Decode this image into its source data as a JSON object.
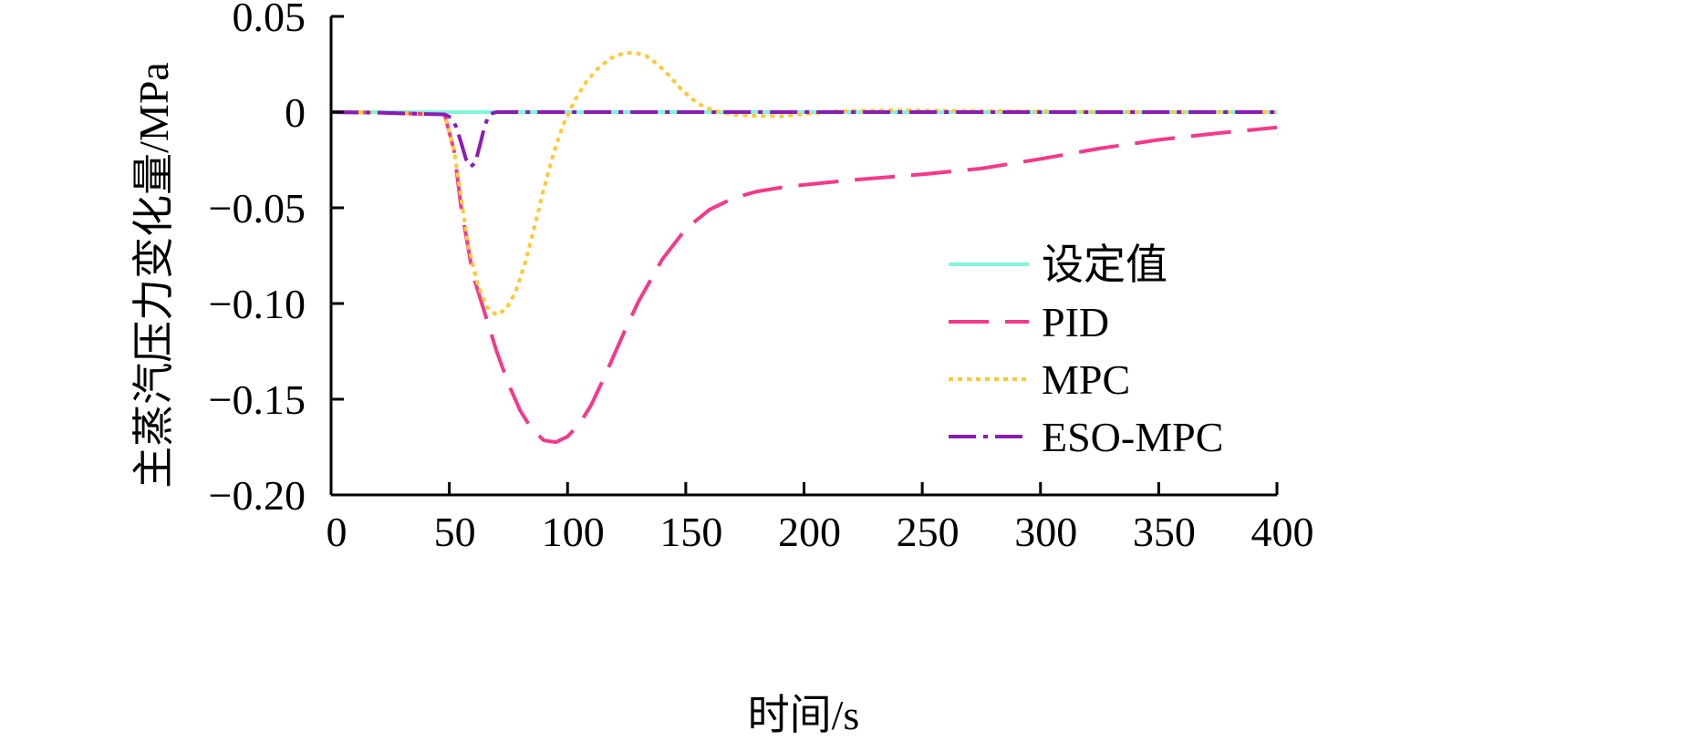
{
  "chart_data": {
    "type": "line",
    "xlabel": "时间/s",
    "ylabel": "主蒸汽压力变化量/MPa",
    "xlim": [
      0,
      400
    ],
    "ylim": [
      -0.2,
      0.05
    ],
    "x_ticks": [
      "0",
      "50",
      "100",
      "150",
      "200",
      "250",
      "300",
      "350",
      "400"
    ],
    "y_ticks": [
      "0.05",
      "0",
      "−0.05",
      "−0.10",
      "−0.15",
      "−0.20"
    ],
    "grid": false,
    "legend_position": "right",
    "series": [
      {
        "name": "设定值",
        "color": "#7FF5DB",
        "dash": "solid",
        "points": [
          [
            0,
            0
          ],
          [
            400,
            0
          ]
        ]
      },
      {
        "name": "PID",
        "color": "#F5388A",
        "dash": "long-dash",
        "points": [
          [
            0,
            0
          ],
          [
            20,
            -0.0003
          ],
          [
            40,
            -0.001
          ],
          [
            48,
            -0.0012
          ],
          [
            52,
            -0.02
          ],
          [
            55,
            -0.05
          ],
          [
            60,
            -0.085
          ],
          [
            65,
            -0.105
          ],
          [
            70,
            -0.125
          ],
          [
            75,
            -0.142
          ],
          [
            80,
            -0.156
          ],
          [
            85,
            -0.166
          ],
          [
            90,
            -0.1715
          ],
          [
            95,
            -0.1725
          ],
          [
            100,
            -0.1695
          ],
          [
            105,
            -0.163
          ],
          [
            110,
            -0.153
          ],
          [
            115,
            -0.14
          ],
          [
            120,
            -0.126
          ],
          [
            125,
            -0.112
          ],
          [
            130,
            -0.099
          ],
          [
            140,
            -0.077
          ],
          [
            150,
            -0.061
          ],
          [
            160,
            -0.051
          ],
          [
            170,
            -0.045
          ],
          [
            180,
            -0.0415
          ],
          [
            190,
            -0.0395
          ],
          [
            200,
            -0.038
          ],
          [
            220,
            -0.0355
          ],
          [
            250,
            -0.0325
          ],
          [
            275,
            -0.0295
          ],
          [
            300,
            -0.0245
          ],
          [
            325,
            -0.019
          ],
          [
            350,
            -0.0145
          ],
          [
            375,
            -0.011
          ],
          [
            400,
            -0.008
          ]
        ]
      },
      {
        "name": "MPC",
        "color": "#FFC935",
        "dash": "dotted",
        "points": [
          [
            0,
            0
          ],
          [
            20,
            -0.0003
          ],
          [
            40,
            -0.001
          ],
          [
            48,
            -0.0012
          ],
          [
            52,
            -0.02
          ],
          [
            55,
            -0.045
          ],
          [
            58,
            -0.07
          ],
          [
            62,
            -0.09
          ],
          [
            66,
            -0.102
          ],
          [
            70,
            -0.106
          ],
          [
            74,
            -0.103
          ],
          [
            78,
            -0.094
          ],
          [
            82,
            -0.079
          ],
          [
            86,
            -0.06
          ],
          [
            90,
            -0.04
          ],
          [
            94,
            -0.022
          ],
          [
            98,
            -0.007
          ],
          [
            103,
            0.006
          ],
          [
            108,
            0.016
          ],
          [
            113,
            0.023
          ],
          [
            118,
            0.028
          ],
          [
            123,
            0.0305
          ],
          [
            128,
            0.0312
          ],
          [
            133,
            0.0295
          ],
          [
            138,
            0.025
          ],
          [
            143,
            0.019
          ],
          [
            148,
            0.012
          ],
          [
            153,
            0.0065
          ],
          [
            158,
            0.0025
          ],
          [
            163,
            0.0005
          ],
          [
            170,
            -0.0015
          ],
          [
            180,
            -0.002
          ],
          [
            190,
            -0.0022
          ],
          [
            200,
            -0.001
          ],
          [
            215,
            0.0005
          ],
          [
            240,
            0.001
          ],
          [
            280,
            0.0005
          ],
          [
            320,
            0.0002
          ],
          [
            360,
            0
          ],
          [
            400,
            0
          ]
        ]
      },
      {
        "name": "ESO-MPC",
        "color": "#8A1CB5",
        "dash": "dash-dot",
        "points": [
          [
            0,
            0
          ],
          [
            20,
            -0.0003
          ],
          [
            40,
            -0.001
          ],
          [
            48,
            -0.0012
          ],
          [
            51,
            -0.003
          ],
          [
            53,
            -0.008
          ],
          [
            55,
            -0.016
          ],
          [
            57,
            -0.0245
          ],
          [
            59,
            -0.0285
          ],
          [
            61,
            -0.0265
          ],
          [
            63,
            -0.017
          ],
          [
            65,
            -0.007
          ],
          [
            67,
            -0.001
          ],
          [
            70,
            0
          ],
          [
            100,
            0
          ],
          [
            200,
            0
          ],
          [
            300,
            0
          ],
          [
            400,
            0
          ]
        ]
      }
    ]
  }
}
